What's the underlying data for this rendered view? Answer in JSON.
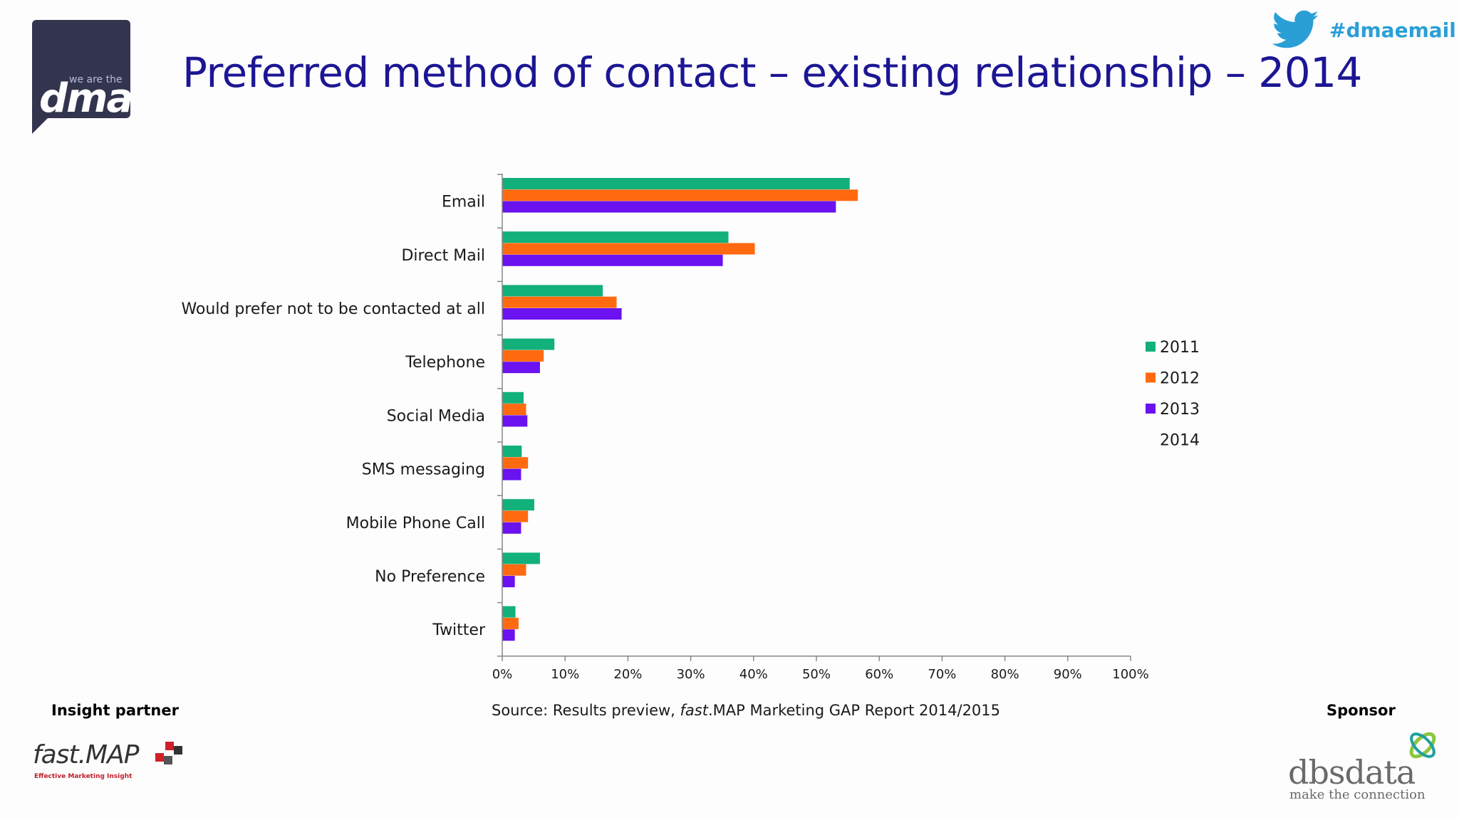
{
  "header": {
    "logo_small": "we are the",
    "logo_big": "dma",
    "title": "Preferred method of contact – existing relationship – 2014",
    "hashtag": "#dmaemail"
  },
  "footer": {
    "insight_partner": "Insight partner",
    "sponsor": "Sponsor",
    "source_prefix": "Source: Results preview, ",
    "source_italic": "fast",
    "source_suffix": ".MAP Marketing GAP Report 2014/2015",
    "fastmap_name": "fast.MAP",
    "fastmap_tagline": "Effective Marketing Insight",
    "dbs_name": "dbsdata",
    "dbs_tagline": "make the connection"
  },
  "colors": {
    "2011": "#12b07a",
    "2012": "#ff6a10",
    "2013": "#6a12f0",
    "title": "#1c1694",
    "hashtag": "#2a9fd6"
  },
  "chart_data": {
    "type": "bar",
    "orientation": "horizontal",
    "title": "Preferred method of contact – existing relationship – 2014",
    "categories": [
      "Email",
      "Direct Mail",
      "Would prefer not to be contacted at all",
      "Telephone",
      "Social Media",
      "SMS messaging",
      "Mobile Phone Call",
      "No Preference",
      "Twitter"
    ],
    "series": [
      {
        "name": "2011",
        "values": [
          55.3,
          36,
          16,
          8.3,
          3.4,
          3.1,
          5.1,
          6,
          2.1
        ]
      },
      {
        "name": "2012",
        "values": [
          56.6,
          40.2,
          18.2,
          6.6,
          3.8,
          4.1,
          4.1,
          3.8,
          2.6
        ]
      },
      {
        "name": "2013",
        "values": [
          53.1,
          35.1,
          19,
          6,
          4,
          3,
          3,
          2,
          2
        ]
      },
      {
        "name": "2014",
        "values": [
          0,
          0,
          0,
          0,
          0,
          0,
          0,
          0,
          0
        ]
      }
    ],
    "xlim": [
      0,
      100
    ],
    "xticks": [
      "0%",
      "10%",
      "20%",
      "30%",
      "40%",
      "50%",
      "60%",
      "70%",
      "80%",
      "90%",
      "100%"
    ],
    "grid": false,
    "legend_position": "right"
  }
}
